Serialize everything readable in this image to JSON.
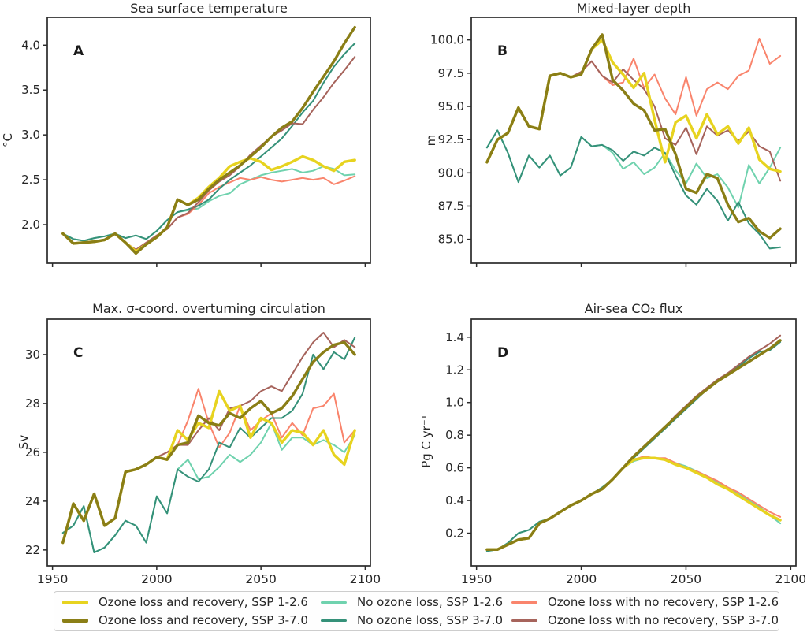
{
  "colors": {
    "olr126": "#e7d31f",
    "olr370": "#8a7e16",
    "nol126": "#6fd2ae",
    "nol370": "#359179",
    "olnr126": "#f9846c",
    "olnr370": "#a6635b",
    "axis": "#2b2b2b",
    "text": "#262626"
  },
  "years": [
    1955,
    1960,
    1965,
    1970,
    1975,
    1980,
    1985,
    1990,
    1995,
    2000,
    2005,
    2010,
    2015,
    2020,
    2025,
    2030,
    2035,
    2040,
    2045,
    2050,
    2055,
    2060,
    2065,
    2070,
    2075,
    2080,
    2085,
    2090,
    2095
  ],
  "x_axis": {
    "ticks": [
      "1950",
      "2000",
      "2050",
      "2100"
    ],
    "xlim": [
      1947.5,
      2102.5
    ]
  },
  "legend": {
    "entries": [
      {
        "label": "Ozone loss and recovery, SSP 1-2.6",
        "color_key": "olr126",
        "thick": true
      },
      {
        "label": "Ozone loss and recovery, SSP 3-7.0",
        "color_key": "olr370",
        "thick": true
      },
      {
        "label": "No ozone loss, SSP 1-2.6",
        "color_key": "nol126",
        "thick": false
      },
      {
        "label": "No ozone loss, SSP 3-7.0",
        "color_key": "nol370",
        "thick": false
      },
      {
        "label": "Ozone loss with no recovery, SSP 1-2.6",
        "color_key": "olnr126",
        "thick": false
      },
      {
        "label": "Ozone loss with no recovery, SSP 3-7.0",
        "color_key": "olnr370",
        "thick": false
      }
    ]
  },
  "chart_data": [
    {
      "id": "A",
      "type": "line",
      "panel_letter": "A",
      "title": "Sea surface temperature",
      "xlabel": "",
      "ylabel": "°C",
      "ylim": [
        1.57,
        4.31
      ],
      "yticks": [
        "2.0",
        "2.5",
        "3.0",
        "3.5",
        "4.0"
      ],
      "show_x_labels": false,
      "grid": false,
      "series": [
        {
          "name": "No ozone loss, SSP 1-2.6",
          "color_key": "nol126",
          "thick": false,
          "values": [
            1.9,
            1.84,
            1.82,
            1.85,
            1.87,
            1.9,
            1.85,
            1.88,
            1.84,
            1.93,
            2.05,
            2.14,
            2.16,
            2.18,
            2.26,
            2.32,
            2.35,
            2.45,
            2.5,
            2.55,
            2.58,
            2.6,
            2.62,
            2.58,
            2.6,
            2.65,
            2.62,
            2.55,
            2.56
          ]
        },
        {
          "name": "Ozone loss with no recovery, SSP 1-2.6",
          "color_key": "olnr126",
          "thick": false,
          "values": [
            1.9,
            1.79,
            1.8,
            1.81,
            1.83,
            1.9,
            1.8,
            1.72,
            1.8,
            1.88,
            1.95,
            2.08,
            2.12,
            2.22,
            2.35,
            2.42,
            2.47,
            2.52,
            2.5,
            2.53,
            2.5,
            2.48,
            2.5,
            2.52,
            2.5,
            2.52,
            2.45,
            2.49,
            2.54
          ]
        },
        {
          "name": "No ozone loss, SSP 3-7.0",
          "color_key": "nol370",
          "thick": false,
          "values": [
            1.9,
            1.84,
            1.82,
            1.85,
            1.87,
            1.9,
            1.85,
            1.88,
            1.84,
            1.93,
            2.05,
            2.14,
            2.17,
            2.21,
            2.28,
            2.4,
            2.5,
            2.58,
            2.66,
            2.76,
            2.86,
            2.96,
            3.1,
            3.25,
            3.38,
            3.58,
            3.76,
            3.9,
            4.02
          ]
        },
        {
          "name": "Ozone loss with no recovery, SSP 3-7.0",
          "color_key": "olnr370",
          "thick": false,
          "values": [
            1.9,
            1.79,
            1.8,
            1.81,
            1.83,
            1.9,
            1.8,
            1.72,
            1.8,
            1.88,
            1.95,
            2.08,
            2.13,
            2.25,
            2.38,
            2.48,
            2.55,
            2.65,
            2.78,
            2.88,
            2.98,
            3.05,
            3.13,
            3.12,
            3.28,
            3.42,
            3.58,
            3.72,
            3.87
          ]
        },
        {
          "name": "Ozone loss and recovery, SSP 1-2.6",
          "color_key": "olr126",
          "thick": true,
          "values": [
            1.9,
            1.79,
            1.8,
            1.81,
            1.83,
            1.9,
            1.8,
            1.7,
            1.78,
            1.86,
            1.97,
            2.28,
            2.22,
            2.3,
            2.42,
            2.52,
            2.65,
            2.7,
            2.74,
            2.7,
            2.61,
            2.65,
            2.7,
            2.76,
            2.72,
            2.65,
            2.6,
            2.7,
            2.72
          ]
        },
        {
          "name": "Ozone loss and recovery, SSP 3-7.0",
          "color_key": "olr370",
          "thick": true,
          "values": [
            1.9,
            1.79,
            1.8,
            1.81,
            1.83,
            1.9,
            1.8,
            1.68,
            1.78,
            1.86,
            1.97,
            2.28,
            2.22,
            2.28,
            2.4,
            2.5,
            2.58,
            2.66,
            2.76,
            2.86,
            2.98,
            3.08,
            3.15,
            3.3,
            3.48,
            3.65,
            3.82,
            4.02,
            4.2
          ]
        }
      ]
    },
    {
      "id": "B",
      "type": "line",
      "panel_letter": "B",
      "title": "Mixed-layer depth",
      "xlabel": "",
      "ylabel": "m",
      "ylim": [
        83.2,
        101.7
      ],
      "yticks": [
        "85.0",
        "87.5",
        "90.0",
        "92.5",
        "95.0",
        "97.5",
        "100.0"
      ],
      "show_x_labels": false,
      "grid": false,
      "series": [
        {
          "name": "No ozone loss, SSP 1-2.6",
          "color_key": "nol126",
          "thick": false,
          "values": [
            91.9,
            93.2,
            91.5,
            89.3,
            91.3,
            90.4,
            91.3,
            89.8,
            90.4,
            92.7,
            92.0,
            92.1,
            91.5,
            90.3,
            90.8,
            89.9,
            90.4,
            91.5,
            90.2,
            89.2,
            90.7,
            89.6,
            89.9,
            88.9,
            87.4,
            90.6,
            89.2,
            90.4,
            91.9
          ]
        },
        {
          "name": "Ozone loss with no recovery, SSP 1-2.6",
          "color_key": "olnr126",
          "thick": false,
          "values": [
            90.8,
            92.5,
            93.0,
            94.9,
            93.5,
            93.3,
            97.3,
            97.5,
            97.2,
            97.6,
            98.4,
            97.3,
            96.6,
            96.8,
            98.6,
            96.4,
            97.4,
            95.6,
            94.4,
            97.2,
            94.3,
            96.3,
            96.8,
            96.3,
            97.3,
            97.7,
            100.1,
            98.2,
            98.8
          ]
        },
        {
          "name": "No ozone loss, SSP 3-7.0",
          "color_key": "nol370",
          "thick": false,
          "values": [
            91.9,
            93.2,
            91.5,
            89.3,
            91.3,
            90.4,
            91.3,
            89.8,
            90.4,
            92.7,
            92.0,
            92.1,
            91.7,
            90.9,
            91.6,
            91.3,
            91.9,
            91.5,
            89.8,
            88.3,
            87.6,
            88.8,
            87.9,
            86.4,
            87.8,
            86.2,
            85.4,
            84.3,
            84.4
          ]
        },
        {
          "name": "Ozone loss with no recovery, SSP 3-7.0",
          "color_key": "olnr370",
          "thick": false,
          "values": [
            90.8,
            92.5,
            93.0,
            94.9,
            93.5,
            93.3,
            97.3,
            97.5,
            97.2,
            97.6,
            98.4,
            97.3,
            96.8,
            97.8,
            97.0,
            96.3,
            95.0,
            92.6,
            92.1,
            93.4,
            91.4,
            93.5,
            92.8,
            93.2,
            92.4,
            93.1,
            92.0,
            91.6,
            89.4
          ]
        },
        {
          "name": "Ozone loss and recovery, SSP 1-2.6",
          "color_key": "olr126",
          "thick": true,
          "values": [
            90.8,
            92.5,
            93.0,
            94.9,
            93.5,
            93.3,
            97.3,
            97.5,
            97.2,
            97.4,
            99.3,
            100.0,
            98.3,
            97.4,
            96.4,
            97.5,
            94.0,
            90.8,
            93.8,
            94.3,
            92.6,
            94.4,
            92.9,
            93.5,
            92.2,
            93.4,
            91.0,
            90.3,
            90.1
          ]
        },
        {
          "name": "Ozone loss and recovery, SSP 3-7.0",
          "color_key": "olr370",
          "thick": true,
          "values": [
            90.8,
            92.5,
            93.0,
            94.9,
            93.5,
            93.3,
            97.3,
            97.5,
            97.2,
            97.4,
            99.3,
            100.4,
            97.0,
            96.2,
            95.2,
            94.7,
            93.2,
            93.3,
            91.4,
            88.8,
            88.5,
            89.9,
            89.6,
            87.6,
            86.3,
            86.6,
            85.6,
            85.1,
            85.8
          ]
        }
      ]
    },
    {
      "id": "C",
      "type": "line",
      "panel_letter": "C",
      "title": "Max. σ-coord. overturning circulation",
      "xlabel": "",
      "ylabel": "Sv",
      "ylim": [
        21.35,
        31.45
      ],
      "yticks": [
        "22",
        "24",
        "26",
        "28",
        "30"
      ],
      "show_x_labels": true,
      "grid": false,
      "series": [
        {
          "name": "No ozone loss, SSP 1-2.6",
          "color_key": "nol126",
          "thick": false,
          "values": [
            22.7,
            23.0,
            23.8,
            21.9,
            22.1,
            22.6,
            23.2,
            23.0,
            22.3,
            24.2,
            23.5,
            25.3,
            25.7,
            24.9,
            25.0,
            25.4,
            25.9,
            25.6,
            25.9,
            26.4,
            27.2,
            26.1,
            26.6,
            26.6,
            26.3,
            26.5,
            26.3,
            26.0,
            26.7
          ]
        },
        {
          "name": "Ozone loss with no recovery, SSP 1-2.6",
          "color_key": "olnr126",
          "thick": false,
          "values": [
            22.3,
            23.9,
            23.2,
            24.3,
            23.0,
            23.3,
            25.2,
            25.3,
            25.5,
            25.8,
            26.0,
            26.3,
            27.3,
            28.6,
            27.2,
            26.2,
            26.8,
            27.9,
            26.9,
            27.3,
            27.6,
            26.6,
            27.2,
            26.7,
            27.8,
            27.9,
            28.4,
            26.4,
            26.9
          ]
        },
        {
          "name": "No ozone loss, SSP 3-7.0",
          "color_key": "nol370",
          "thick": false,
          "values": [
            22.7,
            23.0,
            23.8,
            21.9,
            22.1,
            22.6,
            23.2,
            23.0,
            22.3,
            24.2,
            23.5,
            25.3,
            25.0,
            24.8,
            25.3,
            26.4,
            26.2,
            27.0,
            26.6,
            27.0,
            27.4,
            27.4,
            27.7,
            28.4,
            30.0,
            29.4,
            30.1,
            29.8,
            30.7
          ]
        },
        {
          "name": "Ozone loss with no recovery, SSP 3-7.0",
          "color_key": "olnr370",
          "thick": false,
          "values": [
            22.3,
            23.9,
            23.2,
            24.3,
            23.0,
            23.3,
            25.2,
            25.3,
            25.5,
            25.8,
            26.0,
            26.3,
            26.3,
            26.9,
            27.4,
            26.9,
            27.8,
            27.9,
            28.1,
            28.5,
            28.7,
            28.5,
            29.2,
            29.9,
            30.5,
            30.9,
            30.3,
            30.6,
            30.3
          ]
        },
        {
          "name": "Ozone loss and recovery, SSP 1-2.6",
          "color_key": "olr126",
          "thick": true,
          "values": [
            22.3,
            23.9,
            23.2,
            24.3,
            23.0,
            23.3,
            25.2,
            25.3,
            25.5,
            25.8,
            25.7,
            26.9,
            26.5,
            27.2,
            27.0,
            28.5,
            27.7,
            27.9,
            26.6,
            27.4,
            27.2,
            26.4,
            26.9,
            26.8,
            26.3,
            26.9,
            25.9,
            25.5,
            26.9
          ]
        },
        {
          "name": "Ozone loss and recovery, SSP 3-7.0",
          "color_key": "olr370",
          "thick": true,
          "values": [
            22.3,
            23.9,
            23.2,
            24.3,
            23.0,
            23.3,
            25.2,
            25.3,
            25.5,
            25.8,
            25.7,
            26.3,
            26.4,
            27.5,
            27.2,
            27.1,
            27.6,
            27.4,
            27.8,
            28.1,
            27.6,
            27.8,
            28.3,
            29.0,
            29.7,
            30.1,
            30.4,
            30.5,
            30.0
          ]
        }
      ]
    },
    {
      "id": "D",
      "type": "line",
      "panel_letter": "D",
      "title": "Air-sea CO₂ flux",
      "xlabel": "",
      "ylabel": "Pg C yr⁻¹",
      "ylim": [
        0.0,
        1.51
      ],
      "yticks": [
        "0.2",
        "0.4",
        "0.6",
        "0.8",
        "1.0",
        "1.2",
        "1.4"
      ],
      "show_x_labels": true,
      "grid": false,
      "series": [
        {
          "name": "No ozone loss, SSP 1-2.6",
          "color_key": "nol126",
          "thick": false,
          "values": [
            0.09,
            0.1,
            0.14,
            0.2,
            0.22,
            0.27,
            0.29,
            0.33,
            0.37,
            0.4,
            0.44,
            0.48,
            0.53,
            0.6,
            0.64,
            0.66,
            0.66,
            0.65,
            0.63,
            0.61,
            0.58,
            0.55,
            0.51,
            0.48,
            0.44,
            0.4,
            0.36,
            0.31,
            0.26
          ]
        },
        {
          "name": "Ozone loss with no recovery, SSP 1-2.6",
          "color_key": "olnr126",
          "thick": false,
          "values": [
            0.1,
            0.1,
            0.13,
            0.16,
            0.17,
            0.26,
            0.29,
            0.33,
            0.37,
            0.4,
            0.44,
            0.47,
            0.53,
            0.6,
            0.65,
            0.67,
            0.66,
            0.66,
            0.63,
            0.6,
            0.58,
            0.55,
            0.52,
            0.48,
            0.45,
            0.41,
            0.37,
            0.33,
            0.3
          ]
        },
        {
          "name": "No ozone loss, SSP 3-7.0",
          "color_key": "nol370",
          "thick": false,
          "values": [
            0.09,
            0.1,
            0.14,
            0.2,
            0.22,
            0.27,
            0.29,
            0.33,
            0.37,
            0.4,
            0.44,
            0.48,
            0.53,
            0.6,
            0.66,
            0.72,
            0.78,
            0.84,
            0.9,
            0.96,
            1.02,
            1.08,
            1.13,
            1.18,
            1.22,
            1.27,
            1.31,
            1.32,
            1.37
          ]
        },
        {
          "name": "Ozone loss with no recovery, SSP 3-7.0",
          "color_key": "olnr370",
          "thick": false,
          "values": [
            0.1,
            0.1,
            0.13,
            0.16,
            0.17,
            0.26,
            0.29,
            0.33,
            0.37,
            0.4,
            0.44,
            0.47,
            0.53,
            0.6,
            0.67,
            0.73,
            0.79,
            0.85,
            0.92,
            0.98,
            1.04,
            1.09,
            1.14,
            1.18,
            1.23,
            1.28,
            1.32,
            1.36,
            1.41
          ]
        },
        {
          "name": "Ozone loss and recovery, SSP 1-2.6",
          "color_key": "olr126",
          "thick": true,
          "values": [
            0.1,
            0.1,
            0.13,
            0.16,
            0.17,
            0.26,
            0.29,
            0.33,
            0.37,
            0.4,
            0.44,
            0.47,
            0.53,
            0.6,
            0.65,
            0.66,
            0.66,
            0.65,
            0.62,
            0.6,
            0.57,
            0.54,
            0.5,
            0.47,
            0.43,
            0.39,
            0.35,
            0.31,
            0.28
          ]
        },
        {
          "name": "Ozone loss and recovery, SSP 3-7.0",
          "color_key": "olr370",
          "thick": true,
          "values": [
            0.1,
            0.1,
            0.13,
            0.16,
            0.17,
            0.26,
            0.29,
            0.33,
            0.37,
            0.4,
            0.44,
            0.47,
            0.53,
            0.6,
            0.67,
            0.73,
            0.79,
            0.85,
            0.91,
            0.97,
            1.03,
            1.08,
            1.13,
            1.17,
            1.21,
            1.25,
            1.29,
            1.33,
            1.38
          ]
        }
      ]
    }
  ]
}
